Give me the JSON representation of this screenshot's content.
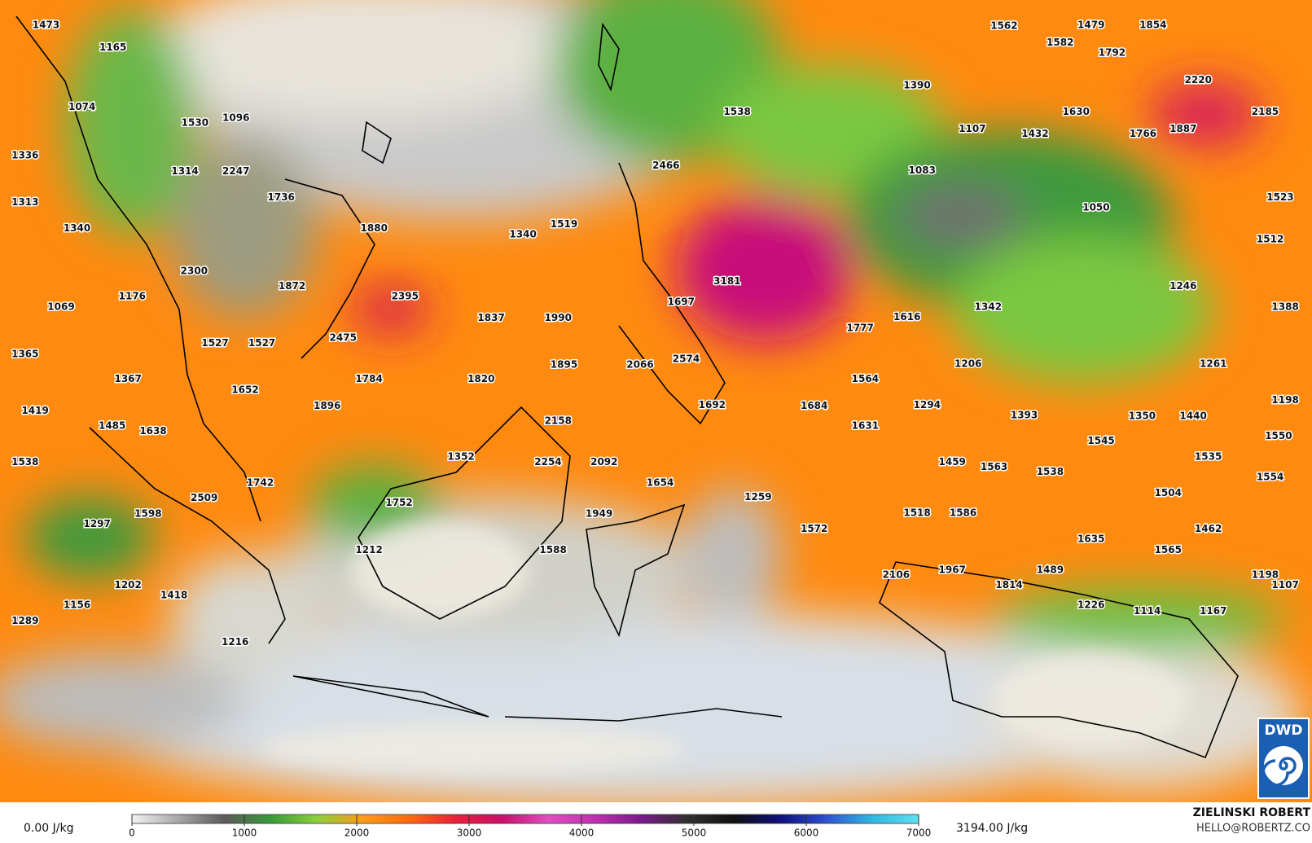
{
  "map": {
    "labels": [
      1473,
      1165,
      1074,
      1530,
      1096,
      1336,
      1314,
      2247,
      1736,
      1313,
      1340,
      1880,
      2300,
      1872,
      1176,
      1069,
      2395,
      2475,
      1527,
      1527,
      1365,
      1367,
      1652,
      1784,
      1896,
      1820,
      1837,
      1990,
      1340,
      1519,
      1538,
      2466,
      1390,
      1562,
      1479,
      1854,
      1582,
      1792,
      2220,
      2185,
      1630,
      1107,
      1432,
      1766,
      1887,
      1083,
      1523,
      1050,
      1512,
      3181,
      1697,
      1246,
      1342,
      1616,
      1777,
      1388,
      1895,
      2066,
      2574,
      1206,
      1261,
      1564,
      1692,
      1684,
      1294,
      1198,
      1419,
      1485,
      1638,
      2158,
      1631,
      1393,
      1350,
      1440,
      1550,
      1545,
      1538,
      1352,
      2254,
      2092,
      1459,
      1563,
      1538,
      1535,
      1554,
      1742,
      1654,
      1504,
      2509,
      1259,
      1752,
      1598,
      1949,
      1518,
      1586,
      1297,
      1572,
      1462,
      1635,
      1212,
      1588,
      1565,
      2106,
      1967,
      1489,
      1814,
      1198,
      1107,
      1202,
      1418,
      1156,
      1226,
      1114,
      1167,
      1289,
      1216
    ]
  },
  "colorbar": {
    "min_label": "0.00 J/kg",
    "max_label": "3194.00 J/kg",
    "ticks": [
      0,
      1000,
      2000,
      3000,
      4000,
      5000,
      6000,
      7000
    ],
    "colors": [
      "#f2f2f2",
      "#a8a8a8",
      "#5a5a5a",
      "#3a9a3a",
      "#8ccf3c",
      "#ff9a1a",
      "#ff6a10",
      "#e8203a",
      "#c8106a",
      "#e050c0",
      "#c030b0",
      "#7a1a8a",
      "#303030",
      "#101010",
      "#10107a",
      "#3050d0",
      "#30b8e0",
      "#60e0f0"
    ]
  },
  "credit": {
    "name": "ZIELINSKI ROBERT",
    "email": "HELLO@ROBERTZ.CO"
  },
  "logo": {
    "text": "DWD"
  }
}
